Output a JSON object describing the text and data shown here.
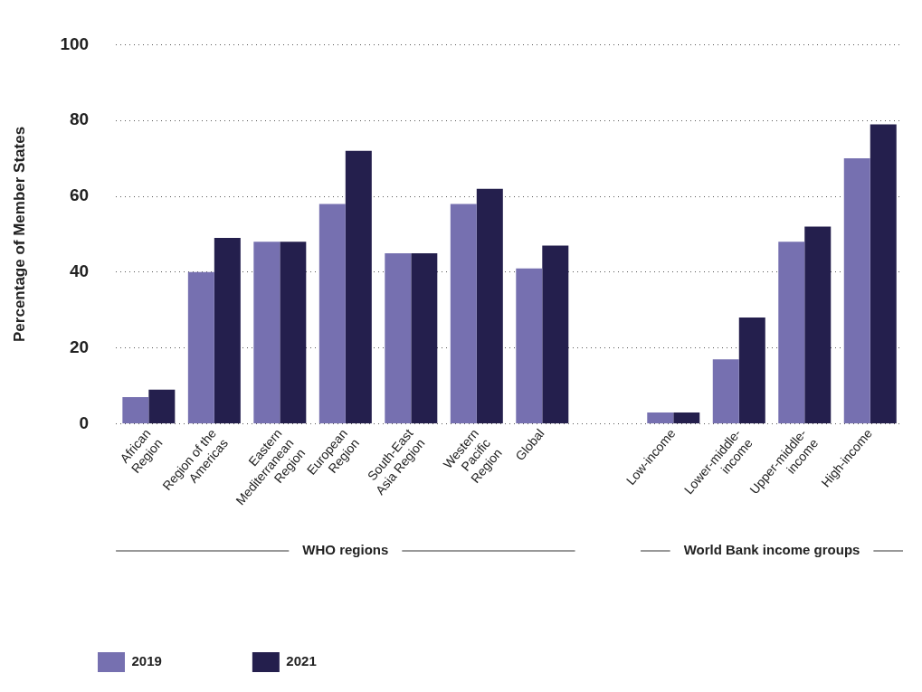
{
  "chart_data": {
    "type": "bar",
    "ylabel": "Percentage of Member States",
    "categories": [
      "African Region",
      "Region of the Americas",
      "Eastern Mediterranean Region",
      "European Region",
      "South-East Asia Region",
      "Western Pacific Region",
      "Global",
      null,
      "Low-income",
      "Lower-middle-income",
      "Upper-middle-income",
      "High-income"
    ],
    "series": [
      {
        "name": "2019",
        "color": "#7670b0",
        "values": [
          7,
          40,
          48,
          58,
          45,
          58,
          41,
          null,
          3,
          17,
          48,
          70
        ]
      },
      {
        "name": "2021",
        "color": "#241f4d",
        "values": [
          9,
          49,
          48,
          72,
          45,
          62,
          47,
          null,
          3,
          28,
          52,
          79
        ]
      }
    ],
    "ylim": [
      0,
      100
    ],
    "yticks": [
      0,
      20,
      40,
      60,
      80,
      100
    ],
    "grid": "y",
    "legend": "bottom left",
    "annotations": [
      "WHO regions",
      "World Bank income groups"
    ]
  }
}
